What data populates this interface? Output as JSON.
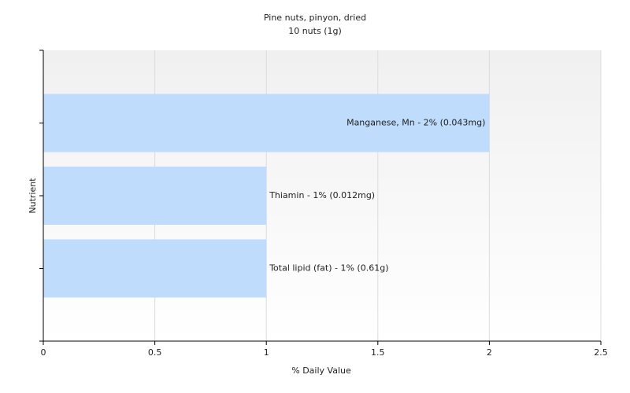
{
  "chart_data": {
    "type": "bar",
    "orientation": "horizontal",
    "title": "Pine nuts, pinyon, dried",
    "subtitle": "10 nuts (1g)",
    "x_label": "% Daily Value",
    "y_label": "Nutrient",
    "values": [
      2,
      1,
      1
    ],
    "value_labels": [
      "Manganese, Mn - 2% (0.043mg)",
      "Thiamin - 1% (0.012mg)",
      "Total lipid (fat) - 1% (0.61g)"
    ],
    "color": "#bfdcfd",
    "xlim": [
      0,
      2.5
    ],
    "xticks": [
      0,
      0.5,
      1,
      1.5,
      2,
      2.5
    ],
    "grid": true
  }
}
